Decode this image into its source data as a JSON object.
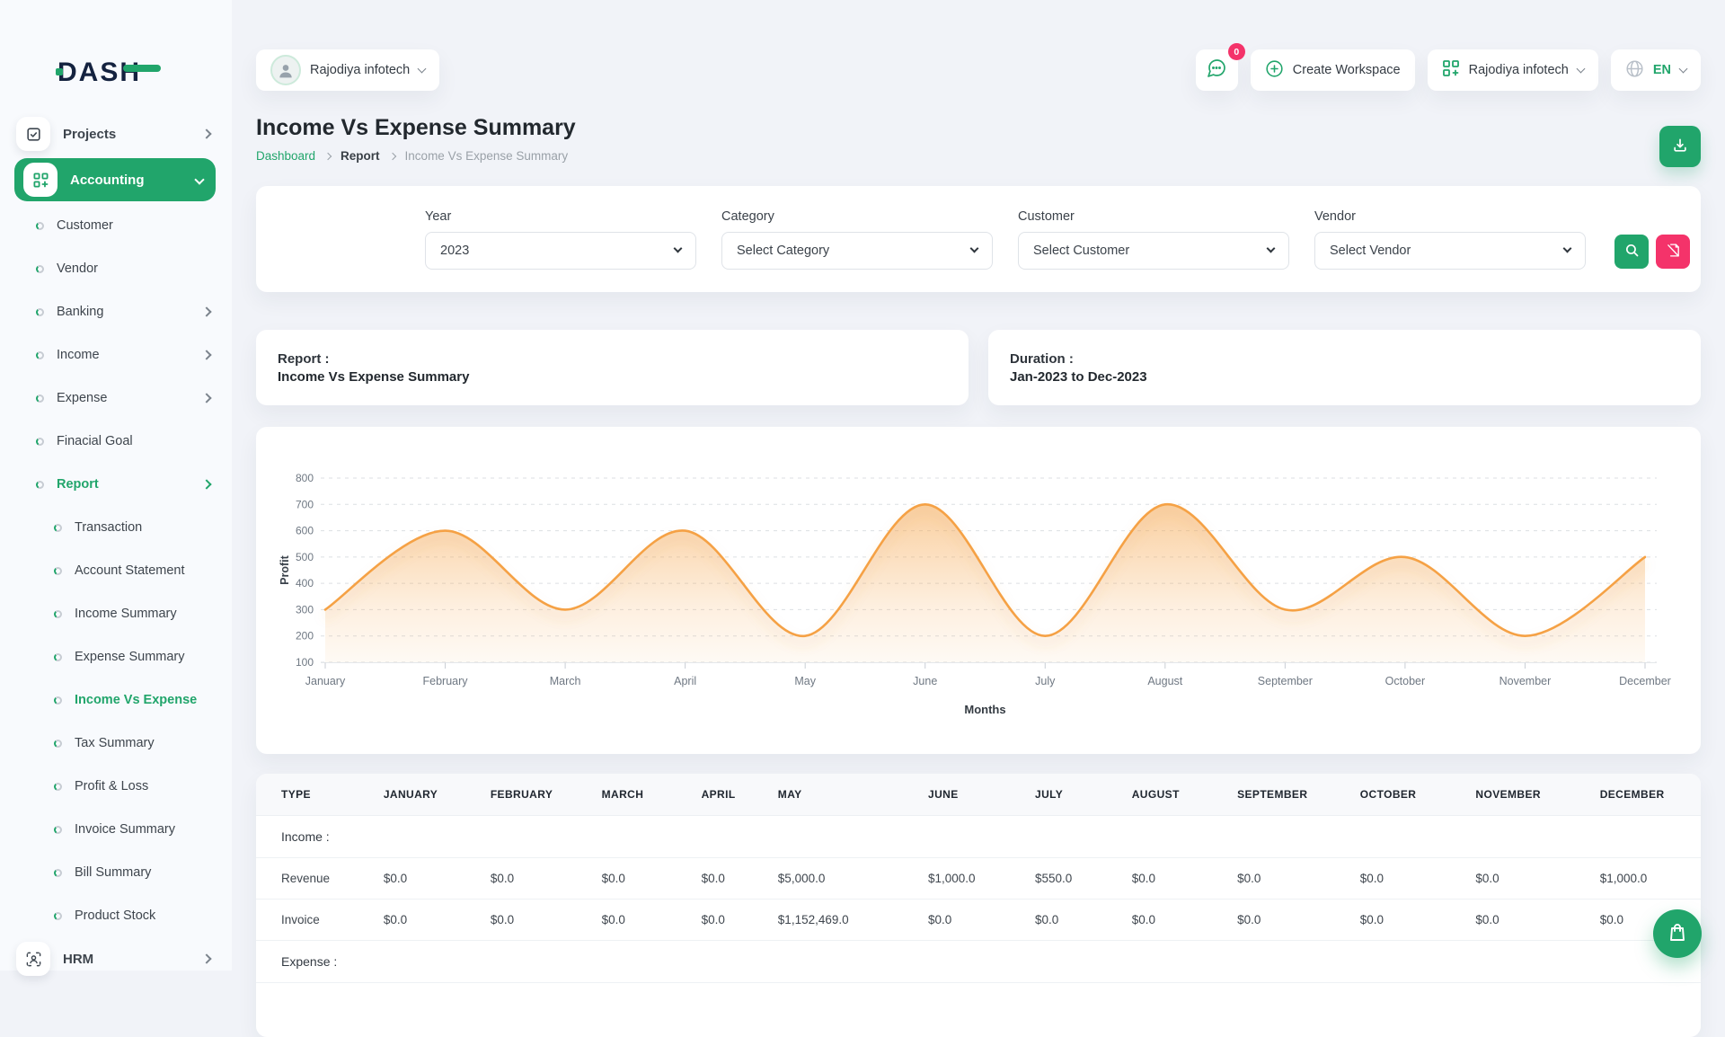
{
  "brand": {
    "logo_text": "DASH"
  },
  "colors": {
    "primary_green": "#21a56b",
    "accent_pink": "#f4336a",
    "logo_navy": "#14223f",
    "chart_line_orange": "#f5a144"
  },
  "icons": [
    "checkbox-icon",
    "grid-plus-icon",
    "user-target-icon",
    "chat-bubble-icon",
    "plus-circle-icon",
    "workspace-grid-icon",
    "globe-icon",
    "download-icon",
    "search-icon",
    "clear-filter-icon",
    "shopping-bag-icon",
    "chevron-icons",
    "dot-bullet-icon",
    "avatar-person-icon"
  ],
  "topbar": {
    "workspace_selector": {
      "label": "Rajodiya infotech",
      "icon": "avatar-person-icon"
    },
    "messages": {
      "badge": "0",
      "icon": "chat-bubble-icon"
    },
    "create_workspace_label": "Create Workspace",
    "company_menu_label": "Rajodiya infotech",
    "language": "EN"
  },
  "page": {
    "title": "Income Vs Expense Summary",
    "breadcrumb": [
      "Dashboard",
      "Report",
      "Income Vs Expense Summary"
    ]
  },
  "sidebar": {
    "items": [
      {
        "label": "Projects",
        "level": 0,
        "icon": "checkbox-icon",
        "chevron": "right",
        "active": false
      },
      {
        "label": "Accounting",
        "level": 0,
        "icon": "grid-plus-icon",
        "chevron": "down",
        "active": true
      },
      {
        "label": "Customer",
        "level": 1,
        "icon": "dot-bullet-icon",
        "chevron": null,
        "active": false
      },
      {
        "label": "Vendor",
        "level": 1,
        "icon": "dot-bullet-icon",
        "chevron": null,
        "active": false
      },
      {
        "label": "Banking",
        "level": 1,
        "icon": "dot-bullet-icon",
        "chevron": "right",
        "active": false
      },
      {
        "label": "Income",
        "level": 1,
        "icon": "dot-bullet-icon",
        "chevron": "right",
        "active": false
      },
      {
        "label": "Expense",
        "level": 1,
        "icon": "dot-bullet-icon",
        "chevron": "right",
        "active": false
      },
      {
        "label": "Finacial Goal",
        "level": 1,
        "icon": "dot-bullet-icon",
        "chevron": null,
        "active": false
      },
      {
        "label": "Report",
        "level": 1,
        "icon": "dot-bullet-icon",
        "chevron": "right",
        "active": true
      },
      {
        "label": "Transaction",
        "level": 2,
        "icon": "dot-bullet-icon",
        "chevron": null,
        "active": false
      },
      {
        "label": "Account Statement",
        "level": 2,
        "icon": "dot-bullet-icon",
        "chevron": null,
        "active": false
      },
      {
        "label": "Income Summary",
        "level": 2,
        "icon": "dot-bullet-icon",
        "chevron": null,
        "active": false
      },
      {
        "label": "Expense Summary",
        "level": 2,
        "icon": "dot-bullet-icon",
        "chevron": null,
        "active": false
      },
      {
        "label": "Income Vs Expense",
        "level": 2,
        "icon": "dot-bullet-icon",
        "chevron": null,
        "active": true
      },
      {
        "label": "Tax Summary",
        "level": 2,
        "icon": "dot-bullet-icon",
        "chevron": null,
        "active": false
      },
      {
        "label": "Profit & Loss",
        "level": 2,
        "icon": "dot-bullet-icon",
        "chevron": null,
        "active": false
      },
      {
        "label": "Invoice Summary",
        "level": 2,
        "icon": "dot-bullet-icon",
        "chevron": null,
        "active": false
      },
      {
        "label": "Bill Summary",
        "level": 2,
        "icon": "dot-bullet-icon",
        "chevron": null,
        "active": false
      },
      {
        "label": "Product Stock",
        "level": 2,
        "icon": "dot-bullet-icon",
        "chevron": null,
        "active": false
      },
      {
        "label": "HRM",
        "level": 0,
        "icon": "user-target-icon",
        "chevron": "right",
        "active": false
      }
    ]
  },
  "filters": {
    "year": {
      "label": "Year",
      "value": "2023"
    },
    "category": {
      "label": "Category",
      "value": "Select Category"
    },
    "customer": {
      "label": "Customer",
      "value": "Select Customer"
    },
    "vendor": {
      "label": "Vendor",
      "value": "Select Vendor"
    }
  },
  "summary_cards": [
    {
      "title": "Report :",
      "value": "Income Vs Expense Summary"
    },
    {
      "title": "Duration :",
      "value": "Jan-2023 to Dec-2023"
    }
  ],
  "chart_data": {
    "type": "area",
    "x": [
      "January",
      "February",
      "March",
      "April",
      "May",
      "June",
      "July",
      "August",
      "September",
      "October",
      "November",
      "December"
    ],
    "series": [
      {
        "name": "Profit",
        "values": [
          300,
          600,
          300,
          600,
          200,
          700,
          200,
          700,
          300,
          500,
          200,
          500
        ]
      }
    ],
    "xlabel": "Months",
    "ylabel": "Profit",
    "ylim": [
      100,
      800
    ],
    "ytick_step": 100,
    "grid": "dashed-horizontal",
    "smooth": true,
    "legend": "none",
    "line_color": "#f5a144",
    "fill": "orange-gradient"
  },
  "table": {
    "columns": [
      "TYPE",
      "JANUARY",
      "FEBRUARY",
      "MARCH",
      "APRIL",
      "MAY",
      "JUNE",
      "JULY",
      "AUGUST",
      "SEPTEMBER",
      "OCTOBER",
      "NOVEMBER",
      "DECEMBER"
    ],
    "sections": [
      {
        "label": "Income :",
        "rows": [
          {
            "type": "Revenue",
            "values": [
              "$0.0",
              "$0.0",
              "$0.0",
              "$0.0",
              "$5,000.0",
              "$1,000.0",
              "$550.0",
              "$0.0",
              "$0.0",
              "$0.0",
              "$0.0",
              "$1,000.0"
            ]
          },
          {
            "type": "Invoice",
            "values": [
              "$0.0",
              "$0.0",
              "$0.0",
              "$0.0",
              "$1,152,469.0",
              "$0.0",
              "$0.0",
              "$0.0",
              "$0.0",
              "$0.0",
              "$0.0",
              "$0.0"
            ]
          }
        ]
      },
      {
        "label": "Expense :",
        "rows": []
      }
    ]
  }
}
